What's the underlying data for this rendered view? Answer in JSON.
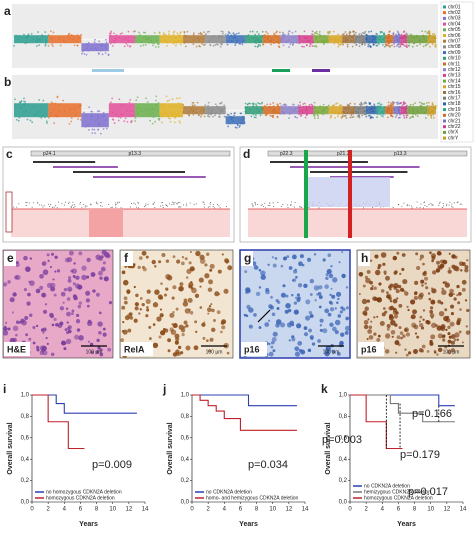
{
  "panel_labels": [
    "a",
    "b",
    "c",
    "d",
    "e",
    "f",
    "g",
    "h",
    "i",
    "j",
    "k"
  ],
  "chromosome_legend": [
    "chr01",
    "chr02",
    "chr03",
    "chr04",
    "chr05",
    "chr06",
    "chr07",
    "chr08",
    "chr09",
    "chr10",
    "chr11",
    "chr12",
    "chr13",
    "chr14",
    "chr15",
    "chr16",
    "chr17",
    "chr18",
    "chr19",
    "chr20",
    "chr21",
    "chr22",
    "chrX",
    "chrY"
  ],
  "browser_bands": {
    "c": [
      "p24.1",
      "p13.3"
    ],
    "d": [
      "p22.3",
      "p21.3",
      "p13.3"
    ]
  },
  "images": [
    {
      "label": "H&E",
      "scale": "100 µm"
    },
    {
      "label": "RelA",
      "scale": "100 µm"
    },
    {
      "label": "p16",
      "scale": "100 µm"
    },
    {
      "label": "p16",
      "scale": "100 µm"
    }
  ],
  "survival": [
    {
      "y_label": "Overall survival",
      "x_label": "Years",
      "xlim": [
        0,
        14
      ],
      "ylim": [
        0,
        1
      ],
      "xticks": [
        0,
        2,
        4,
        6,
        8,
        10,
        12,
        14
      ],
      "yticks": [
        {
          "value": 0,
          "label": "0,0"
        },
        {
          "value": 0.2,
          "label": "0,2"
        },
        {
          "value": 0.4,
          "label": "0,4"
        },
        {
          "value": 0.6,
          "label": "0,6"
        },
        {
          "value": 0.8,
          "label": "0,8"
        },
        {
          "value": 1,
          "label": "1,0"
        }
      ],
      "series": [
        {
          "name": "no homozygous CDKN2A deletion",
          "color": "#2b3fb0",
          "x": [
            0,
            3,
            3,
            4,
            4,
            13
          ],
          "values": [
            1,
            1,
            0.92,
            0.92,
            0.83,
            0.83
          ]
        },
        {
          "name": "homozygous CDKN2A deletion",
          "color": "#c0202a",
          "x": [
            0,
            2,
            2,
            4.5,
            4.5,
            6.5
          ],
          "values": [
            1,
            1,
            0.75,
            0.75,
            0.5,
            0.5
          ]
        }
      ],
      "p_values": [
        "p=0.009"
      ]
    },
    {
      "y_label": "Overall survival",
      "x_label": "Years",
      "xlim": [
        0,
        14
      ],
      "ylim": [
        0,
        1
      ],
      "xticks": [
        0,
        2,
        4,
        6,
        8,
        10,
        12,
        14
      ],
      "yticks": [
        {
          "value": 0,
          "label": "0,0"
        },
        {
          "value": 0.2,
          "label": "0,2"
        },
        {
          "value": 0.4,
          "label": "0,4"
        },
        {
          "value": 0.6,
          "label": "0,6"
        },
        {
          "value": 0.8,
          "label": "0,8"
        },
        {
          "value": 1,
          "label": "1,0"
        }
      ],
      "series": [
        {
          "name": "no CDKN2A deletion",
          "color": "#2b3fb0",
          "x": [
            0,
            7,
            7,
            13
          ],
          "values": [
            1,
            1,
            0.9,
            0.9
          ]
        },
        {
          "name": "homo- and hemizygous CDKN2A deletion",
          "color": "#c0202a",
          "x": [
            0,
            1,
            1,
            2,
            2,
            3,
            3,
            4,
            4,
            6,
            6,
            13
          ],
          "values": [
            1,
            1,
            0.95,
            0.95,
            0.9,
            0.9,
            0.85,
            0.85,
            0.78,
            0.78,
            0.67,
            0.67
          ]
        }
      ],
      "p_values": [
        "p=0.034"
      ]
    },
    {
      "y_label": "Overall survival",
      "x_label": "Years",
      "xlim": [
        0,
        14
      ],
      "ylim": [
        0,
        1
      ],
      "xticks": [
        0,
        2,
        4,
        6,
        8,
        10,
        12,
        14
      ],
      "yticks": [
        {
          "value": 0,
          "label": "0,0"
        },
        {
          "value": 0.2,
          "label": "0,2"
        },
        {
          "value": 0.4,
          "label": "0,4"
        },
        {
          "value": 0.6,
          "label": "0,6"
        },
        {
          "value": 0.8,
          "label": "0,8"
        },
        {
          "value": 1,
          "label": "1,0"
        }
      ],
      "series": [
        {
          "name": "no CDKN2A deletion",
          "color": "#2b3fb0",
          "x": [
            0,
            11,
            11,
            13
          ],
          "values": [
            1,
            1,
            0.9,
            0.9
          ]
        },
        {
          "name": "hemizygous CDKN2A deletion",
          "color": "#777777",
          "x": [
            0,
            5,
            5,
            6,
            6,
            9,
            9,
            13
          ],
          "values": [
            1,
            1,
            0.92,
            0.92,
            0.83,
            0.83,
            0.75,
            0.75
          ]
        },
        {
          "name": "homozygous CDKN2A deletion",
          "color": "#c0202a",
          "x": [
            0,
            2,
            2,
            4.5,
            4.5,
            6.5
          ],
          "values": [
            1,
            1,
            0.75,
            0.75,
            0.5,
            0.5
          ]
        }
      ],
      "p_values": [
        "p=0.003",
        "p=0.166",
        "p=0.179",
        "p=0.017"
      ]
    }
  ]
}
